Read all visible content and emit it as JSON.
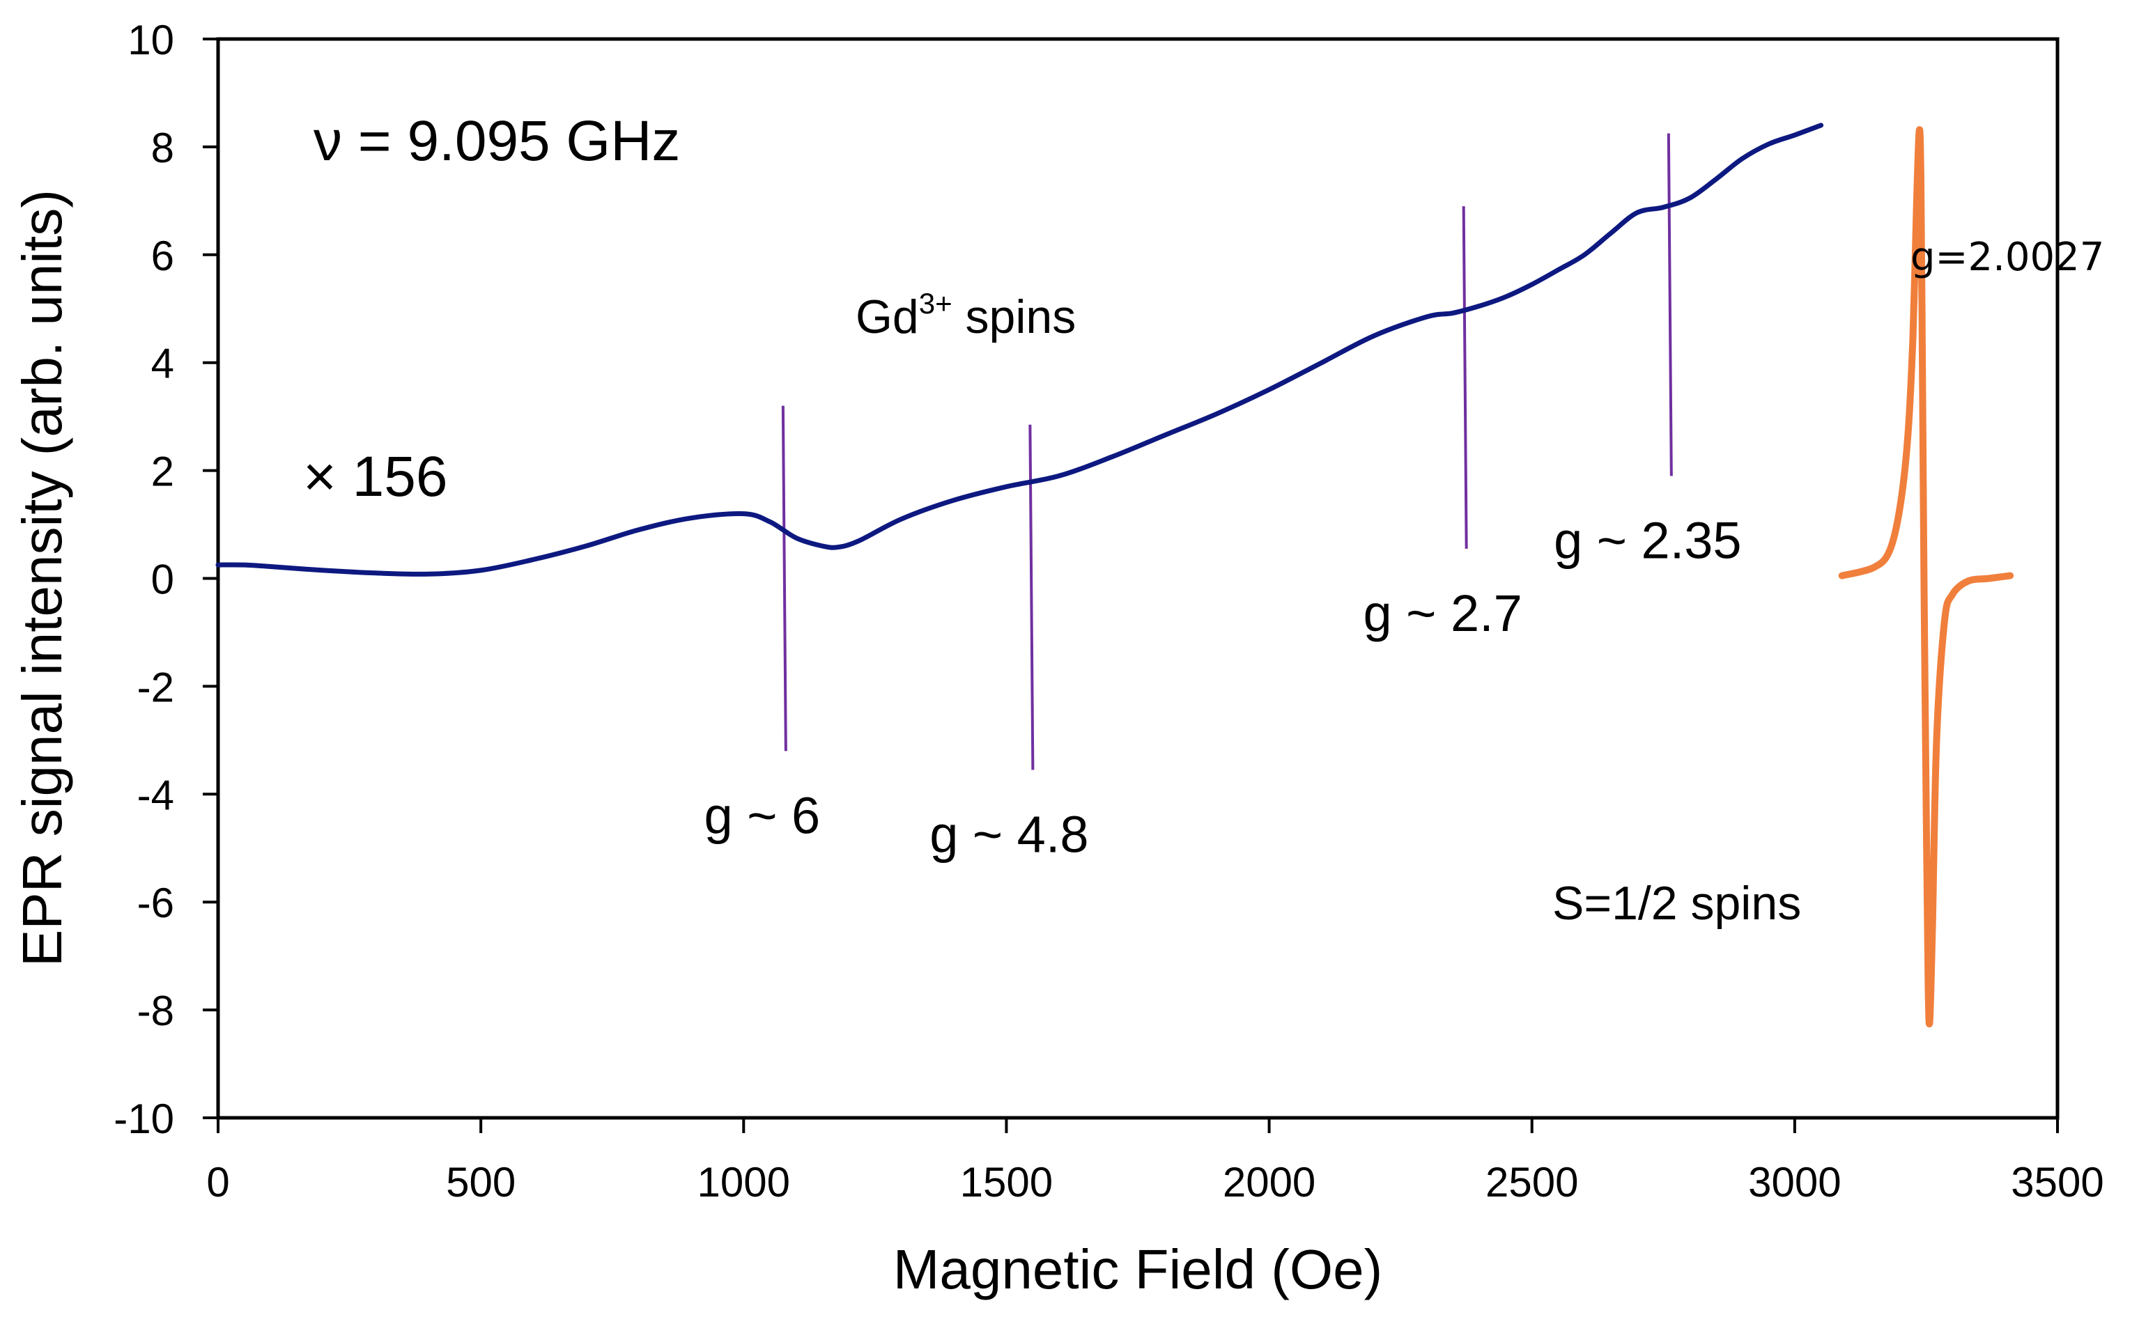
{
  "chart_data": {
    "type": "line",
    "title": "",
    "xlabel": "Magnetic Field (Oe)",
    "ylabel": "EPR signal intensity (arb. units)",
    "xlim": [
      0,
      3500
    ],
    "ylim": [
      -10,
      10
    ],
    "xticks": [
      "0",
      "500",
      "1000",
      "1500",
      "2000",
      "2500",
      "3000",
      "3500"
    ],
    "yticks": [
      "-10",
      "-8",
      "-6",
      "-4",
      "-2",
      "0",
      "2",
      "4",
      "6",
      "8",
      "10"
    ],
    "grid": false,
    "legend": "none",
    "colors": {
      "gd_series": "#0d1980",
      "s_half_series": "#f07f3c",
      "marker_lines": "#7030a0"
    },
    "series": [
      {
        "name": "Gd3+ spins (x156)",
        "x": [
          0,
          50,
          100,
          200,
          300,
          400,
          500,
          600,
          700,
          800,
          900,
          1000,
          1050,
          1100,
          1150,
          1180,
          1220,
          1300,
          1400,
          1500,
          1600,
          1700,
          1800,
          1900,
          2000,
          2100,
          2200,
          2300,
          2350,
          2400,
          2450,
          2500,
          2550,
          2600,
          2650,
          2700,
          2750,
          2800,
          2850,
          2900,
          2950,
          3000,
          3050
        ],
        "values": [
          0.25,
          0.25,
          0.22,
          0.15,
          0.1,
          0.08,
          0.15,
          0.35,
          0.6,
          0.9,
          1.12,
          1.2,
          1.05,
          0.75,
          0.6,
          0.58,
          0.7,
          1.1,
          1.45,
          1.7,
          1.9,
          2.25,
          2.65,
          3.05,
          3.5,
          4.0,
          4.5,
          4.85,
          4.92,
          5.05,
          5.22,
          5.45,
          5.72,
          6.0,
          6.4,
          6.78,
          6.88,
          7.05,
          7.4,
          7.78,
          8.05,
          8.22,
          8.4
        ]
      },
      {
        "name": "S=1/2 spins",
        "x": [
          3090,
          3150,
          3180,
          3200,
          3215,
          3225,
          3232,
          3237,
          3240,
          3243,
          3246,
          3250,
          3254,
          3257,
          3262,
          3270,
          3285,
          3300,
          3330,
          3370,
          3410
        ],
        "values": [
          0.05,
          0.2,
          0.5,
          1.3,
          2.6,
          4.5,
          7.0,
          8.3,
          7.5,
          4.0,
          0.0,
          -4.0,
          -7.5,
          -8.2,
          -6.5,
          -3.0,
          -0.8,
          -0.3,
          -0.05,
          0.0,
          0.05
        ]
      }
    ],
    "markers": [
      {
        "x": 1075,
        "y_top": 3.2,
        "y_bottom": -3.2,
        "label": "g ~ 6"
      },
      {
        "x": 1545,
        "y_top": 2.85,
        "y_bottom": -3.55,
        "label": "g ~ 4.8"
      },
      {
        "x": 2370,
        "y_top": 6.9,
        "y_bottom": 0.55,
        "label": "g ~ 2.7"
      },
      {
        "x": 2760,
        "y_top": 8.25,
        "y_bottom": 1.9,
        "label": "g ~ 2.35"
      }
    ],
    "annotations": {
      "frequency": "ν = 9.095 GHz",
      "scale_factor": "× 156",
      "gd_label_main": "Gd",
      "gd_label_sup": "3+",
      "gd_label_rest": " spins",
      "g_free": "g=2.0027",
      "s_half_label": "S=1/2 spins"
    }
  }
}
